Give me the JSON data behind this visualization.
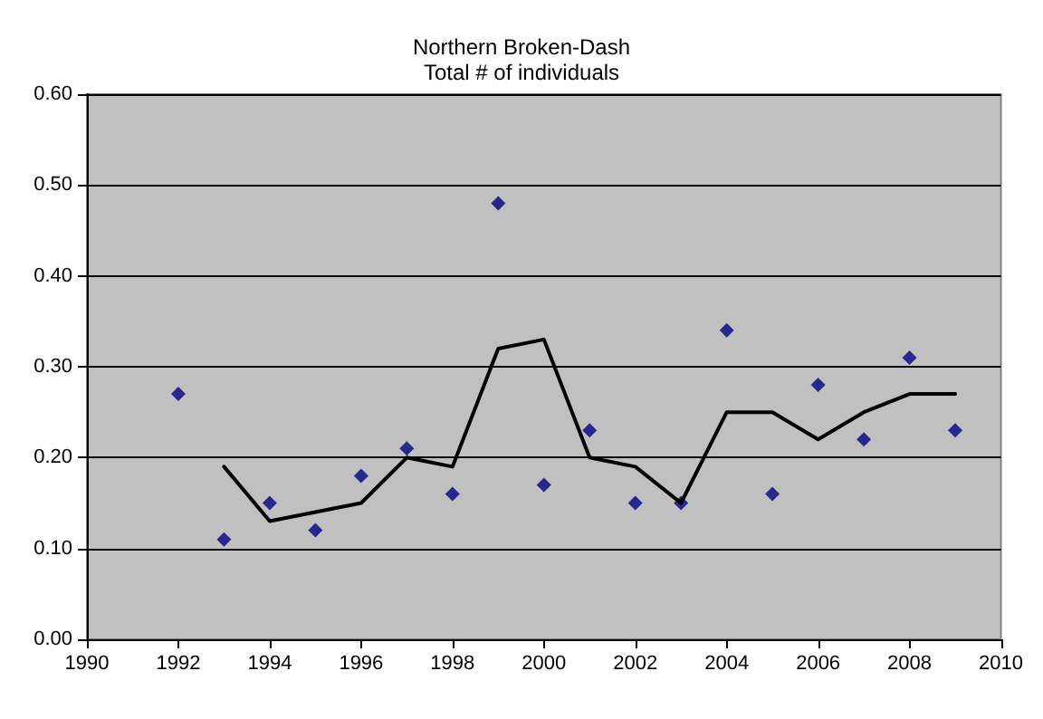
{
  "chart_data": {
    "type": "scatter",
    "title": "Northern Broken-Dash\nTotal # of individuals",
    "x": [
      1992,
      1993,
      1994,
      1995,
      1996,
      1997,
      1998,
      1999,
      2000,
      2001,
      2002,
      2003,
      2004,
      2005,
      2006,
      2007,
      2008,
      2009
    ],
    "series": [
      {
        "color": "#000080",
        "marker": "diamond",
        "values": [
          0.27,
          0.11,
          0.15,
          0.12,
          0.18,
          0.21,
          0.16,
          0.48,
          0.17,
          0.23,
          0.15,
          0.15,
          0.34,
          0.16,
          0.28,
          0.22,
          0.31,
          0.23
        ]
      },
      {
        "type": "line",
        "color": "#000000",
        "marker": "none",
        "line_style": "solid",
        "x": [
          1993,
          1994,
          1995,
          1996,
          1997,
          1998,
          1999,
          2000,
          2001,
          2002,
          2003,
          2004,
          2005,
          2006,
          2007,
          2008,
          2009
        ],
        "values": [
          0.19,
          0.13,
          0.14,
          0.15,
          0.2,
          0.19,
          0.32,
          0.33,
          0.2,
          0.19,
          0.15,
          0.25,
          0.25,
          0.22,
          0.25,
          0.27,
          0.27
        ]
      }
    ],
    "xlim": [
      1990,
      2010
    ],
    "xticks": [
      1990,
      1992,
      1994,
      1996,
      1998,
      2000,
      2002,
      2004,
      2006,
      2008,
      2010
    ],
    "ylim": [
      0,
      0.6
    ],
    "yticks": [
      {
        "value": 0,
        "label": "0.00"
      },
      {
        "value": 0.1,
        "label": "0.10"
      },
      {
        "value": 0.2,
        "label": "0.20"
      },
      {
        "value": 0.3,
        "label": "0.30"
      },
      {
        "value": 0.4,
        "label": "0.40"
      },
      {
        "value": 0.5,
        "label": "0.50"
      },
      {
        "value": 0.6,
        "label": "0.60"
      }
    ],
    "grid": "y"
  }
}
